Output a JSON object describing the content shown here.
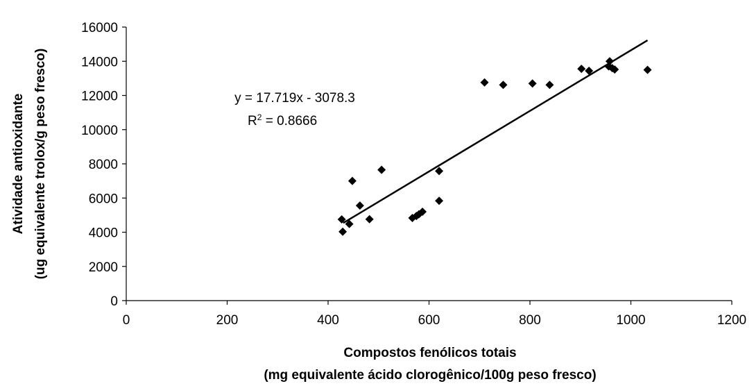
{
  "chart_data": {
    "type": "scatter",
    "title": "",
    "xlabel_line1": "Compostos fenólicos totais",
    "xlabel_line2": "(mg equivalente ácido clorogênico/100g peso fresco)",
    "ylabel_line1": "Atividade antioxidante",
    "ylabel_line2": "(ug equivalente trolox/g peso fresco)",
    "xlim": [
      0,
      1200
    ],
    "ylim": [
      0,
      16000
    ],
    "xticks": [
      0,
      200,
      400,
      600,
      800,
      1000,
      1200
    ],
    "yticks": [
      0,
      2000,
      4000,
      6000,
      8000,
      10000,
      12000,
      14000,
      16000
    ],
    "grid": false,
    "legend": "none",
    "marker": "diamond",
    "color": "#000000",
    "points": [
      {
        "x": 427,
        "y": 4750
      },
      {
        "x": 429,
        "y": 4030
      },
      {
        "x": 442,
        "y": 4480
      },
      {
        "x": 448,
        "y": 7000
      },
      {
        "x": 463,
        "y": 5560
      },
      {
        "x": 482,
        "y": 4760
      },
      {
        "x": 506,
        "y": 7650
      },
      {
        "x": 567,
        "y": 4830
      },
      {
        "x": 575,
        "y": 4950
      },
      {
        "x": 580,
        "y": 5050
      },
      {
        "x": 587,
        "y": 5200
      },
      {
        "x": 620,
        "y": 7580
      },
      {
        "x": 620,
        "y": 5840
      },
      {
        "x": 710,
        "y": 12760
      },
      {
        "x": 747,
        "y": 12620
      },
      {
        "x": 805,
        "y": 12700
      },
      {
        "x": 839,
        "y": 12620
      },
      {
        "x": 902,
        "y": 13560
      },
      {
        "x": 917,
        "y": 13440
      },
      {
        "x": 956,
        "y": 13700
      },
      {
        "x": 958,
        "y": 14000
      },
      {
        "x": 963,
        "y": 13600
      },
      {
        "x": 968,
        "y": 13520
      },
      {
        "x": 1033,
        "y": 13500
      }
    ],
    "trendline": {
      "slope": 17.719,
      "intercept": -3078.3,
      "x_range": [
        430,
        1033
      ]
    },
    "annotations": {
      "equation": "y = 17.719x - 3078.3",
      "r2_prefix": "R",
      "r2_sup": "2",
      "r2_value": " = 0.8666"
    }
  }
}
